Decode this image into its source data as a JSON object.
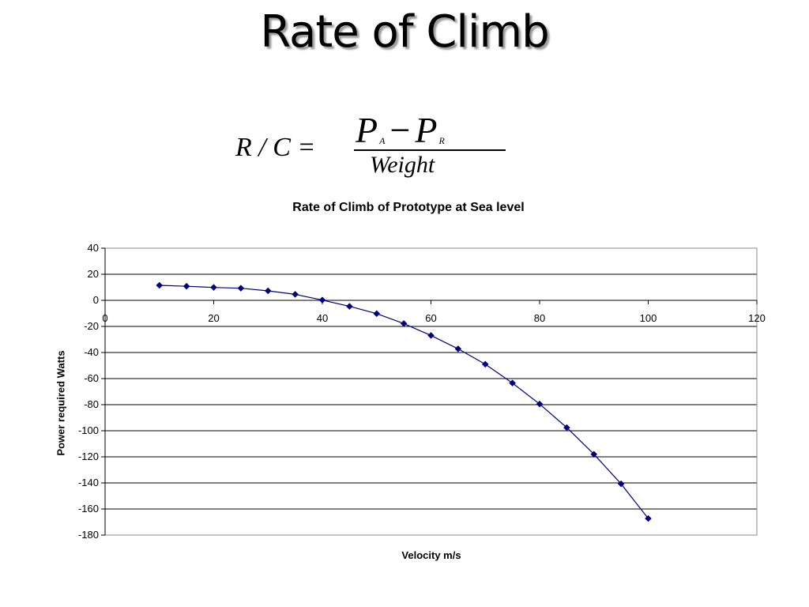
{
  "slide": {
    "title": "Rate of Climb"
  },
  "formula": {
    "lhs": "R / C =",
    "pa_symbol": "P",
    "pa_sub": "A",
    "minus": "−",
    "pr_symbol": "P",
    "pr_sub": "R",
    "denominator": "Weight"
  },
  "chart_data": {
    "type": "line",
    "title": "Rate of Climb of Prototype at Sea level",
    "xlabel": "Velocity m/s",
    "ylabel": "Power required Watts",
    "xlim": [
      0,
      120
    ],
    "ylim": [
      -180,
      40
    ],
    "xticks": [
      0,
      20,
      40,
      60,
      80,
      100,
      120
    ],
    "yticks": [
      40,
      20,
      0,
      -20,
      -40,
      -60,
      -80,
      -100,
      -120,
      -140,
      -160,
      -180
    ],
    "grid": "horizontal",
    "series": [
      {
        "color": "#000080",
        "marker": "diamond",
        "x": [
          10,
          15,
          20,
          25,
          30,
          35,
          40,
          45,
          50,
          55,
          60,
          65,
          70,
          75,
          80,
          85,
          90,
          95,
          100
        ],
        "y": [
          11.5,
          10.8,
          9.9,
          9.3,
          7.3,
          4.6,
          0.2,
          -4.6,
          -10.2,
          -17.8,
          -26.9,
          -37.2,
          -49,
          -63.4,
          -79.5,
          -97.6,
          -118,
          -140.7,
          -167.3
        ]
      }
    ]
  }
}
